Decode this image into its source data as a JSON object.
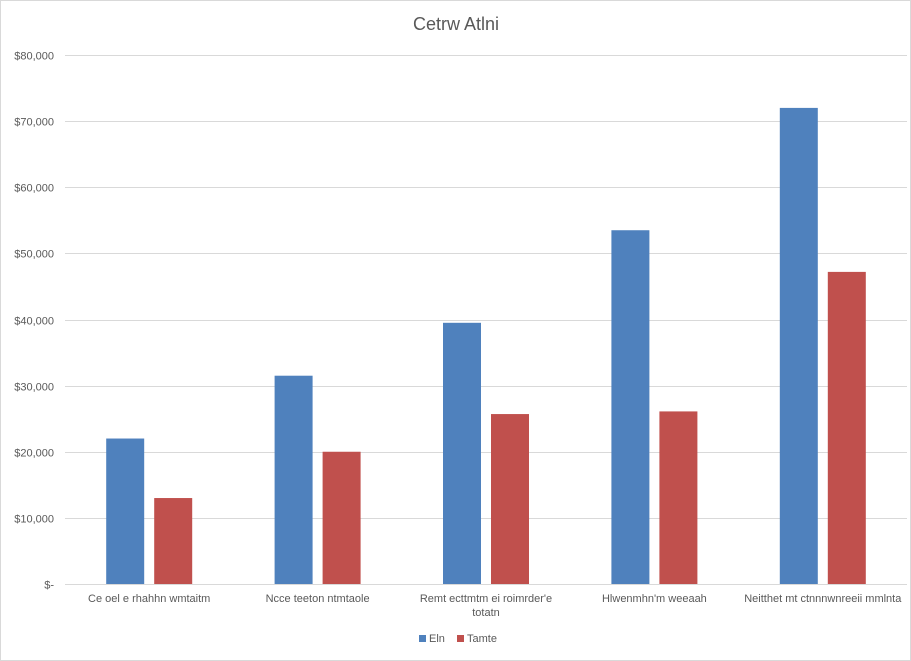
{
  "chart_data": {
    "type": "bar",
    "title": "Cetrw Atlni",
    "xlabel": "",
    "ylabel": "",
    "ylim": [
      0,
      80000
    ],
    "yticks": [
      0,
      10000,
      20000,
      30000,
      40000,
      50000,
      60000,
      70000,
      80000
    ],
    "ytick_labels": [
      "$-",
      "$10,000",
      "$20,000",
      "$30,000",
      "$40,000",
      "$50,000",
      "$60,000",
      "$70,000",
      "$80,000"
    ],
    "grid": true,
    "legend_position": "bottom",
    "categories": [
      [
        "Ce oel e rhahhn wmtaitm"
      ],
      [
        "Ncce teeton ntmtaole"
      ],
      [
        "Remt ecttmtm ei roimrder'e",
        "totatn"
      ],
      [
        "Hlwenmhn'm weeaah"
      ],
      [
        "Neitthet mt ctnnnwnreeii mmlnta"
      ]
    ],
    "series": [
      {
        "name": "Eln",
        "color": "#4f81bd",
        "values": [
          22000,
          31500,
          39500,
          53500,
          72000
        ]
      },
      {
        "name": "Tamte",
        "color": "#c0504d",
        "values": [
          13000,
          20000,
          25700,
          26100,
          47200
        ]
      }
    ]
  }
}
